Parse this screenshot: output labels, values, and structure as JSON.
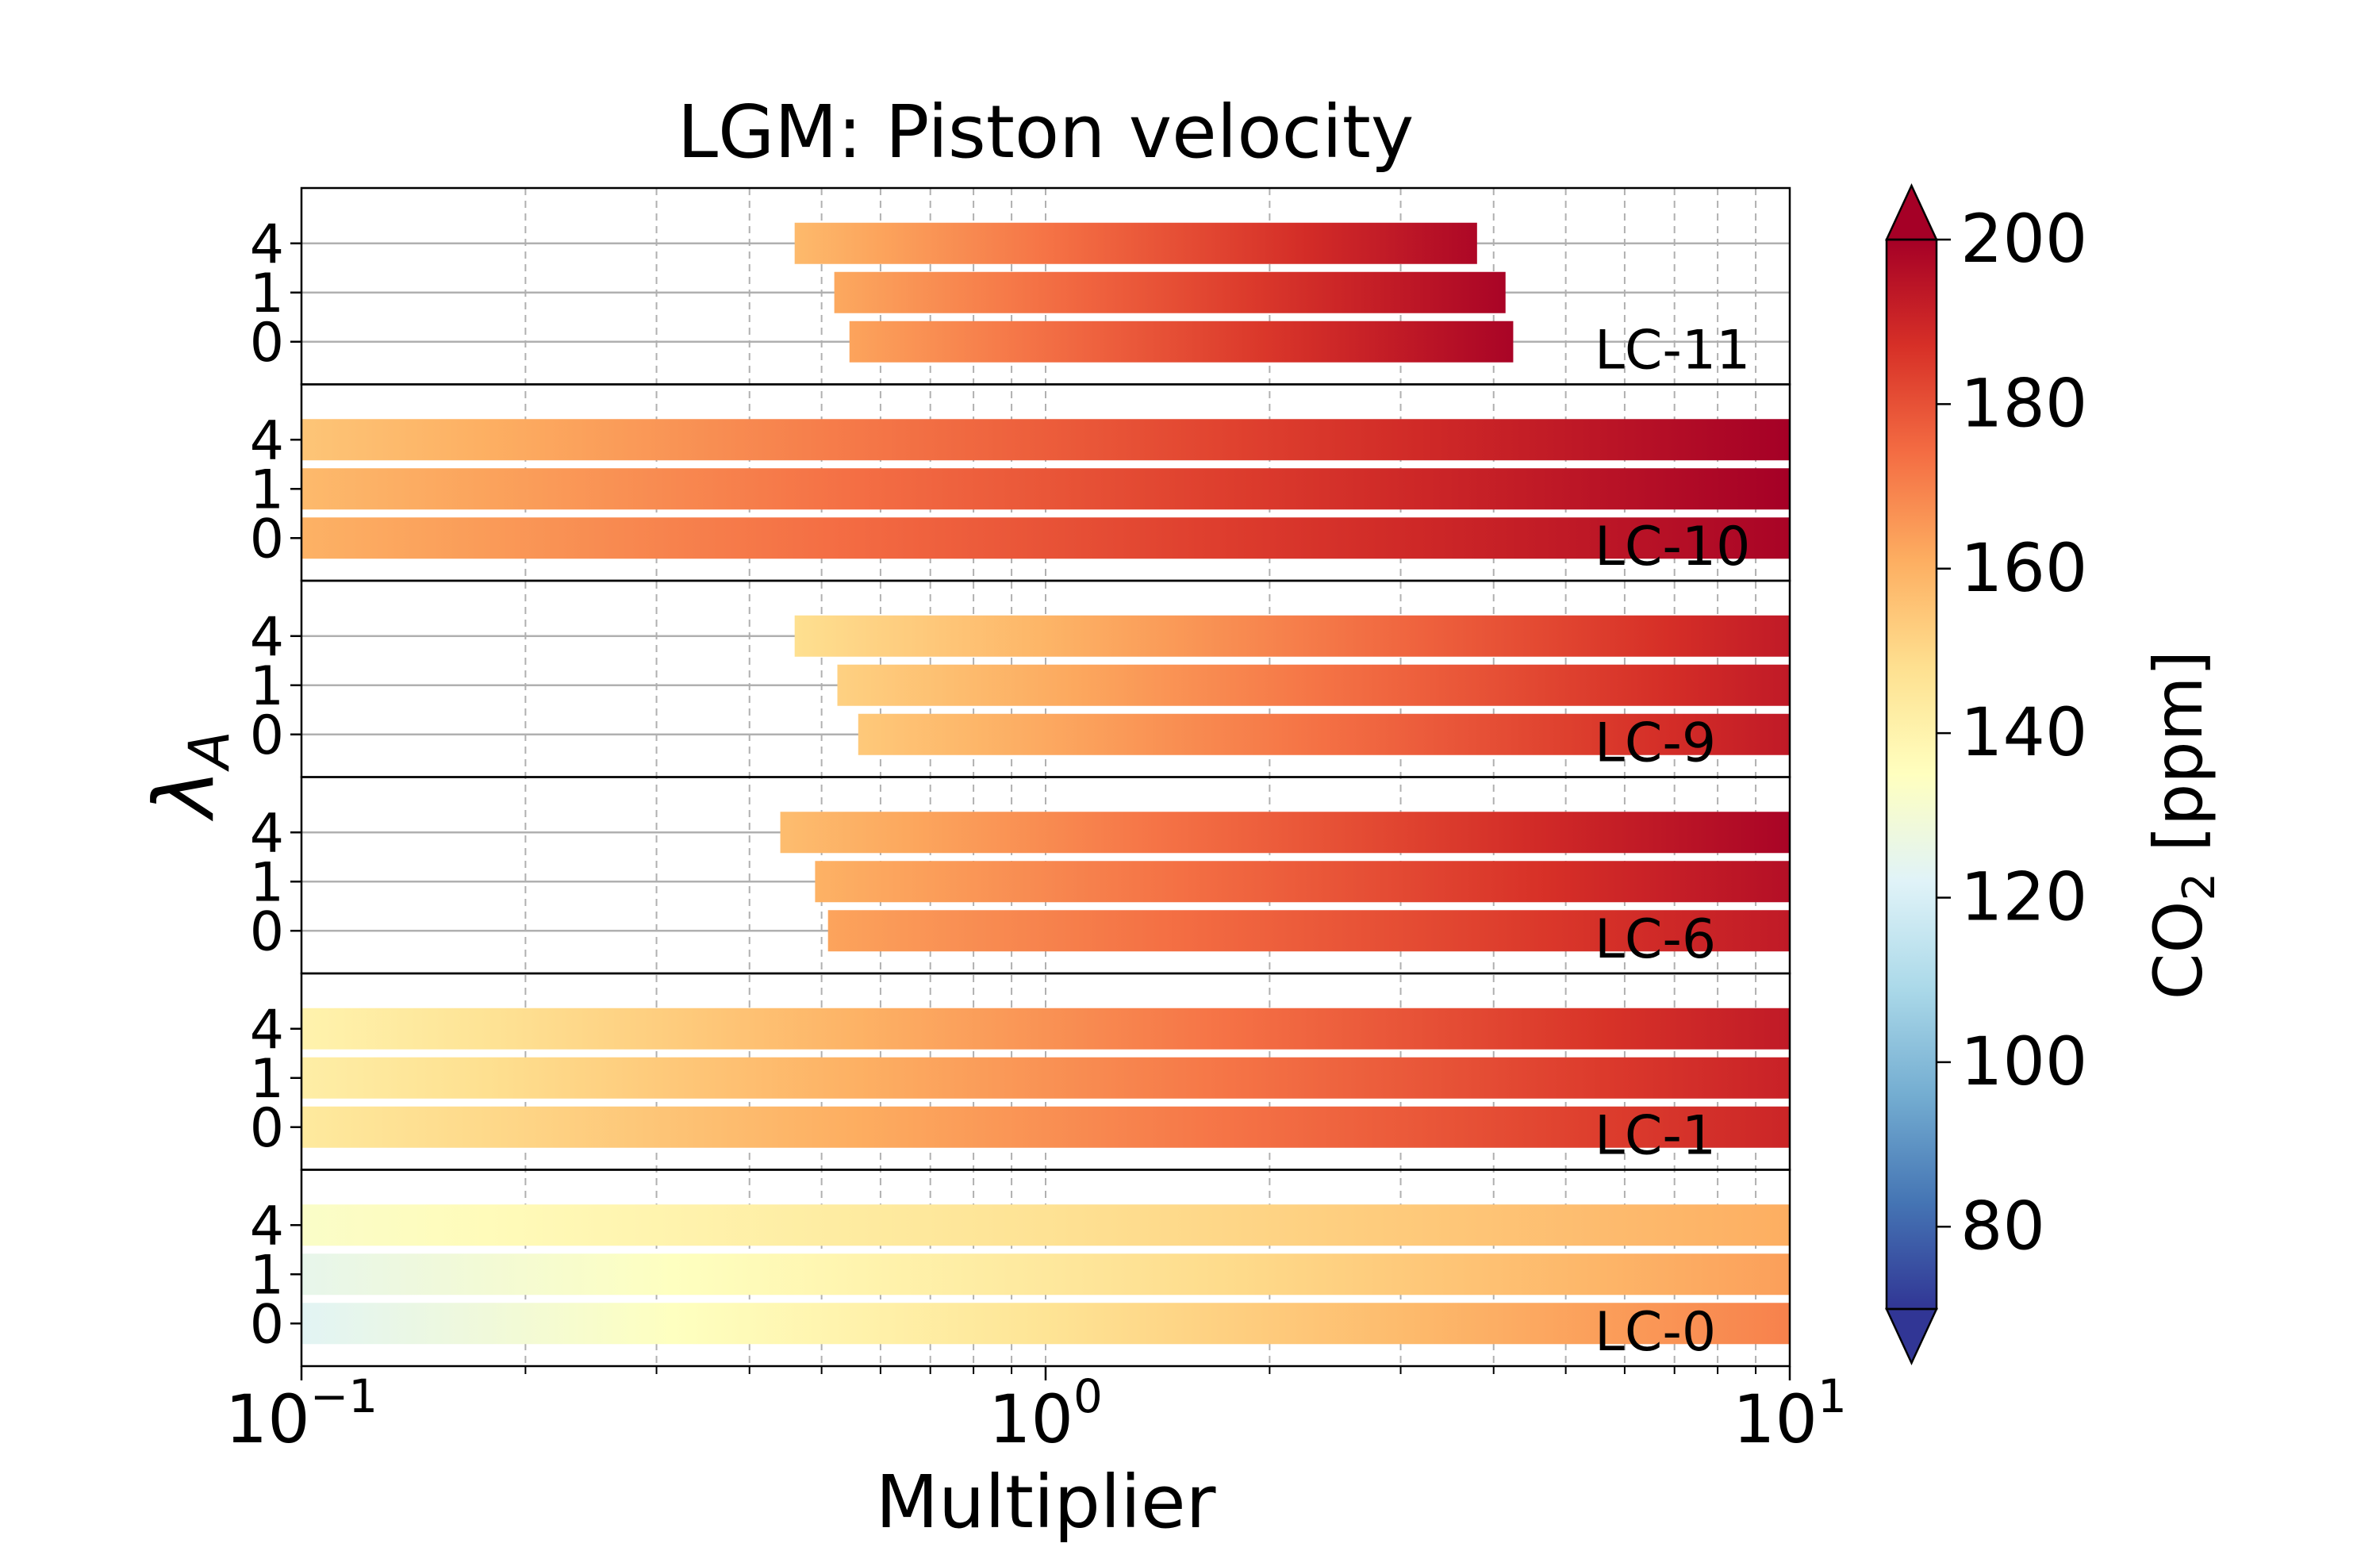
{
  "chart_data": {
    "type": "bar",
    "title": "LGM: Piston velocity",
    "xlabel": "Multiplier",
    "ylabel_symbol": "λ",
    "ylabel_subscript": "A",
    "xscale": "log",
    "xlim": [
      0.1,
      10
    ],
    "x_tick_labels": [
      {
        "base": "10",
        "exp": "−1"
      },
      {
        "base": "10",
        "exp": "0"
      },
      {
        "base": "10",
        "exp": "1"
      }
    ],
    "grid": "vertical dashed (major and minor)",
    "colorbar": {
      "label_main": "CO",
      "label_sub": "2",
      "label_unit": "[ppm]",
      "range": [
        70,
        200
      ],
      "ticks": [
        80,
        100,
        120,
        140,
        160,
        180,
        200
      ],
      "extend": "both",
      "colormap": "RdYlBu_r"
    },
    "panels": [
      {
        "name": "LC-11",
        "rows": [
          {
            "lambda": "4",
            "x_start": 0.46,
            "x_end": 3.8,
            "co2_start": 158,
            "co2_end": 198
          },
          {
            "lambda": "1",
            "x_start": 0.52,
            "x_end": 4.15,
            "co2_start": 162,
            "co2_end": 199
          },
          {
            "lambda": "0",
            "x_start": 0.545,
            "x_end": 4.25,
            "co2_start": 163,
            "co2_end": 199
          }
        ]
      },
      {
        "name": "LC-10",
        "rows": [
          {
            "lambda": "4",
            "x_start": 0.1,
            "x_end": 10,
            "co2_start": 155,
            "co2_end": 200
          },
          {
            "lambda": "1",
            "x_start": 0.1,
            "x_end": 10,
            "co2_start": 158,
            "co2_end": 200
          },
          {
            "lambda": "0",
            "x_start": 0.1,
            "x_end": 10,
            "co2_start": 160,
            "co2_end": 199
          }
        ]
      },
      {
        "name": "LC-9",
        "rows": [
          {
            "lambda": "4",
            "x_start": 0.46,
            "x_end": 10,
            "co2_start": 148,
            "co2_end": 193
          },
          {
            "lambda": "1",
            "x_start": 0.525,
            "x_end": 10,
            "co2_start": 152,
            "co2_end": 193
          },
          {
            "lambda": "0",
            "x_start": 0.56,
            "x_end": 10,
            "co2_start": 154,
            "co2_end": 193
          }
        ]
      },
      {
        "name": "LC-6",
        "rows": [
          {
            "lambda": "4",
            "x_start": 0.44,
            "x_end": 10,
            "co2_start": 157,
            "co2_end": 199
          },
          {
            "lambda": "1",
            "x_start": 0.49,
            "x_end": 10,
            "co2_start": 160,
            "co2_end": 196
          },
          {
            "lambda": "0",
            "x_start": 0.51,
            "x_end": 10,
            "co2_start": 163,
            "co2_end": 193
          }
        ]
      },
      {
        "name": "LC-1",
        "rows": [
          {
            "lambda": "4",
            "x_start": 0.1,
            "x_end": 10,
            "co2_start": 140,
            "co2_end": 193
          },
          {
            "lambda": "1",
            "x_start": 0.1,
            "x_end": 10,
            "co2_start": 142,
            "co2_end": 191
          },
          {
            "lambda": "0",
            "x_start": 0.1,
            "x_end": 10,
            "co2_start": 144,
            "co2_end": 190
          }
        ]
      },
      {
        "name": "LC-0",
        "rows": [
          {
            "lambda": "4",
            "x_start": 0.1,
            "x_end": 10,
            "co2_start": 133,
            "co2_end": 161
          },
          {
            "lambda": "1",
            "x_start": 0.1,
            "x_end": 10,
            "co2_start": 125,
            "co2_end": 164
          },
          {
            "lambda": "0",
            "x_start": 0.1,
            "x_end": 10,
            "co2_start": 123,
            "co2_end": 170
          }
        ]
      }
    ]
  }
}
